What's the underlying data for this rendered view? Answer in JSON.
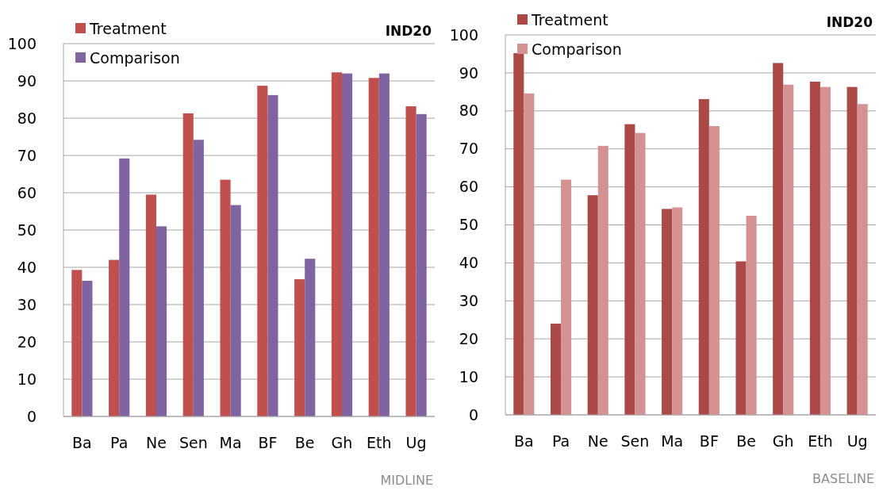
{
  "chart_data": [
    {
      "type": "bar",
      "title": "IND20",
      "annotations": [
        "MIDLINE"
      ],
      "categories": [
        "Ba",
        "Pa",
        "Ne",
        "Sen",
        "Ma",
        "BF",
        "Be",
        "Gh",
        "Eth",
        "Ug"
      ],
      "series": [
        {
          "name": "Treatment",
          "color": "#c0504d",
          "values": [
            39.3,
            42,
            59.5,
            81.3,
            63.5,
            88.7,
            36.8,
            92.3,
            90.8,
            83.2
          ]
        },
        {
          "name": "Comparison",
          "color": "#8064a2",
          "values": [
            36.4,
            69.2,
            51,
            74.2,
            56.7,
            86.2,
            42.3,
            92,
            92,
            81.1
          ]
        }
      ],
      "ylim": [
        0,
        100
      ],
      "yticks": [
        0,
        10,
        20,
        30,
        40,
        50,
        60,
        70,
        80,
        90,
        100
      ],
      "grid": "y",
      "legend": "top left"
    },
    {
      "type": "bar",
      "title": "IND20",
      "annotations": [
        "BASELINE"
      ],
      "categories": [
        "Ba",
        "Pa",
        "Ne",
        "Sen",
        "Ma",
        "BF",
        "Be",
        "Gh",
        "Eth",
        "Ug"
      ],
      "series": [
        {
          "name": "Treatment",
          "color": "#ab4947",
          "values": [
            95.2,
            24,
            57.8,
            76.5,
            54.2,
            83.1,
            40.4,
            92.6,
            87.7,
            86.3
          ]
        },
        {
          "name": "Comparison",
          "color": "#d49392",
          "values": [
            84.6,
            61.9,
            70.8,
            74.2,
            54.6,
            76,
            52.4,
            86.9,
            86.3,
            81.8
          ]
        }
      ],
      "ylim": [
        0,
        100
      ],
      "yticks": [
        0,
        10,
        20,
        30,
        40,
        50,
        60,
        70,
        80,
        90,
        100
      ],
      "grid": "y",
      "legend": "top left"
    }
  ]
}
